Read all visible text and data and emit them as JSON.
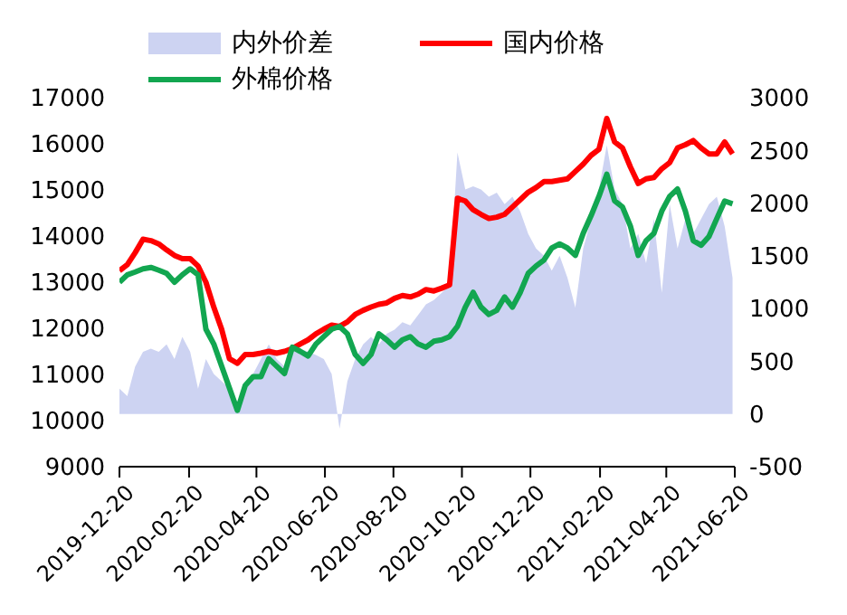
{
  "chart_data": {
    "type": "line",
    "legend": "top",
    "marker": "none",
    "line_style": "solid",
    "x": [
      "2019-12-20",
      "2019-12-27",
      "2020-01-03",
      "2020-01-10",
      "2020-01-17",
      "2020-01-24",
      "2020-01-31",
      "2020-02-07",
      "2020-02-14",
      "2020-02-21",
      "2020-02-28",
      "2020-03-06",
      "2020-03-13",
      "2020-03-20",
      "2020-03-27",
      "2020-04-03",
      "2020-04-10",
      "2020-04-17",
      "2020-04-24",
      "2020-05-01",
      "2020-05-08",
      "2020-05-15",
      "2020-05-22",
      "2020-05-29",
      "2020-06-05",
      "2020-06-12",
      "2020-06-19",
      "2020-06-26",
      "2020-07-03",
      "2020-07-10",
      "2020-07-17",
      "2020-07-24",
      "2020-07-31",
      "2020-08-07",
      "2020-08-14",
      "2020-08-21",
      "2020-08-28",
      "2020-09-04",
      "2020-09-11",
      "2020-09-18",
      "2020-09-25",
      "2020-10-02",
      "2020-10-09",
      "2020-10-16",
      "2020-10-23",
      "2020-10-30",
      "2020-11-06",
      "2020-11-13",
      "2020-11-20",
      "2020-11-27",
      "2020-12-04",
      "2020-12-11",
      "2020-12-18",
      "2020-12-25",
      "2021-01-01",
      "2021-01-08",
      "2021-01-15",
      "2021-01-22",
      "2021-01-29",
      "2021-02-05",
      "2021-02-12",
      "2021-02-19",
      "2021-02-26",
      "2021-03-05",
      "2021-03-12",
      "2021-03-19",
      "2021-03-26",
      "2021-04-02",
      "2021-04-09",
      "2021-04-16",
      "2021-04-23",
      "2021-04-30",
      "2021-05-07",
      "2021-05-14",
      "2021-05-21",
      "2021-05-28",
      "2021-06-04",
      "2021-06-11",
      "2021-06-18"
    ],
    "xlim": [
      "2019-12-20",
      "2021-06-20"
    ],
    "xticks": [
      "2019-12-20",
      "2020-02-20",
      "2020-04-20",
      "2020-06-20",
      "2020-08-20",
      "2020-10-20",
      "2020-12-20",
      "2021-02-20",
      "2021-04-20",
      "2021-06-20"
    ],
    "ylim": [
      9000,
      17000
    ],
    "yticks": [
      9000,
      10000,
      11000,
      12000,
      13000,
      14000,
      15000,
      16000,
      17000
    ],
    "y2lim": [
      -500,
      3000
    ],
    "y2ticks": [
      -500,
      0,
      500,
      1000,
      1500,
      2000,
      2500,
      3000
    ],
    "series": [
      {
        "name": "内外价差",
        "type": "area",
        "axis": "y2",
        "color": "#cdd3f2",
        "values": [
          240,
          170,
          450,
          590,
          620,
          590,
          660,
          520,
          730,
          590,
          240,
          520,
          380,
          310,
          240,
          60,
          240,
          380,
          520,
          660,
          520,
          450,
          590,
          620,
          590,
          560,
          520,
          380,
          -140,
          310,
          520,
          660,
          730,
          660,
          760,
          800,
          870,
          840,
          940,
          1040,
          1080,
          1150,
          1220,
          2480,
          2130,
          2160,
          2130,
          2060,
          2100,
          1990,
          2060,
          1920,
          1710,
          1570,
          1500,
          1360,
          1500,
          1290,
          1010,
          1570,
          1850,
          2130,
          2550,
          2130,
          1990,
          1570,
          1710,
          1430,
          1850,
          1150,
          1990,
          1570,
          1850,
          1710,
          1850,
          1990,
          2060,
          1780,
          1290
        ]
      },
      {
        "name": "国内价格",
        "color": "#ff0000",
        "values": [
          13250,
          13380,
          13640,
          13930,
          13900,
          13830,
          13700,
          13580,
          13510,
          13510,
          13350,
          13000,
          12460,
          11980,
          11340,
          11240,
          11430,
          11430,
          11460,
          11500,
          11460,
          11500,
          11560,
          11660,
          11750,
          11880,
          11980,
          12070,
          12040,
          12140,
          12300,
          12390,
          12460,
          12520,
          12550,
          12650,
          12710,
          12680,
          12740,
          12840,
          12810,
          12870,
          12940,
          14820,
          14760,
          14570,
          14470,
          14380,
          14410,
          14470,
          14630,
          14790,
          14950,
          15050,
          15180,
          15180,
          15210,
          15240,
          15400,
          15560,
          15750,
          15880,
          16550,
          16040,
          15910,
          15500,
          15140,
          15240,
          15270,
          15460,
          15590,
          15910,
          15980,
          16070,
          15910,
          15780,
          15780,
          16040,
          15780
        ]
      },
      {
        "name": "外棉价格",
        "color": "#12a650",
        "values": [
          13000,
          13160,
          13220,
          13290,
          13320,
          13260,
          13190,
          13000,
          13160,
          13290,
          13160,
          11980,
          11660,
          11180,
          10700,
          10220,
          10760,
          10950,
          10950,
          11340,
          11180,
          11020,
          11590,
          11500,
          11400,
          11660,
          11820,
          11980,
          12040,
          11880,
          11430,
          11240,
          11430,
          11880,
          11750,
          11590,
          11750,
          11820,
          11660,
          11590,
          11720,
          11750,
          11820,
          12040,
          12460,
          12780,
          12460,
          12300,
          12390,
          12680,
          12460,
          12780,
          13190,
          13350,
          13480,
          13740,
          13830,
          13740,
          13580,
          14060,
          14440,
          14860,
          15340,
          14760,
          14630,
          14220,
          13580,
          13900,
          14060,
          14540,
          14860,
          15020,
          14540,
          13900,
          13800,
          13990,
          14380,
          14760,
          14700
        ]
      }
    ]
  }
}
